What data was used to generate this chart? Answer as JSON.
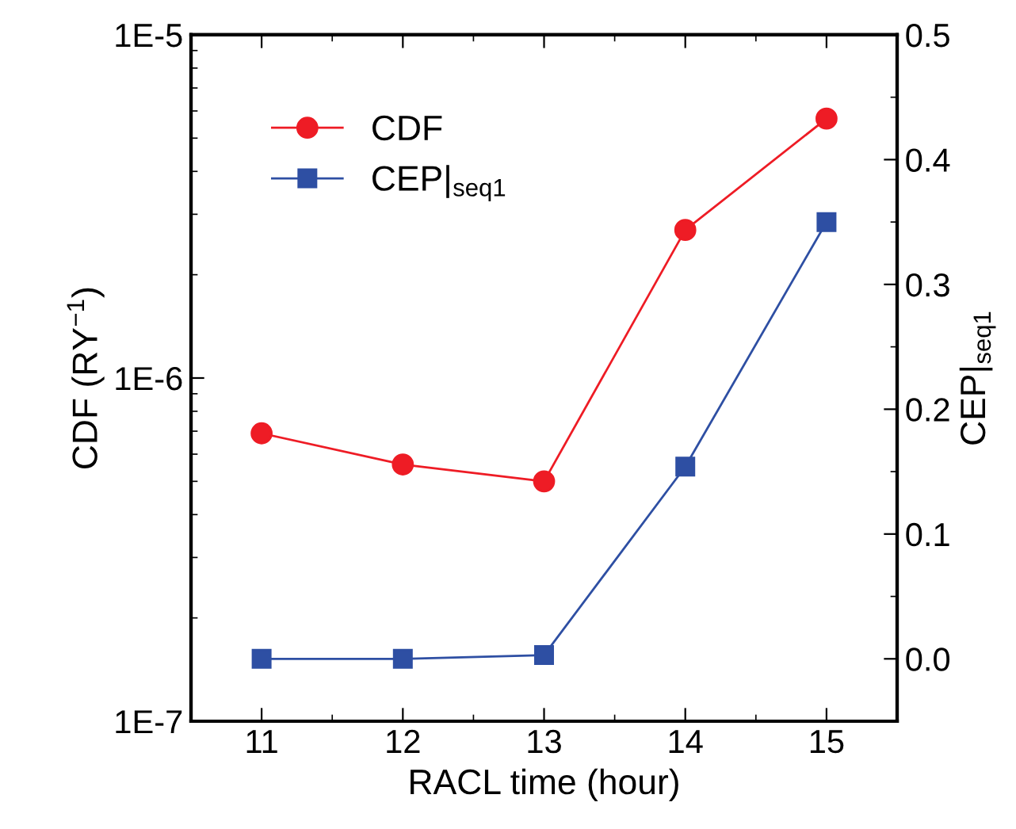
{
  "chart_data": {
    "type": "line",
    "xlabel": "RACL time (hour)",
    "ylabel": "CDF (RY$^{−1}$)",
    "y2label": "CEP|$_{seq1}$",
    "x": [
      11,
      12,
      13,
      14,
      15
    ],
    "series": [
      {
        "name": "CDF",
        "color": "#ee1c25",
        "marker": "circle",
        "values": [
          6.9e-07,
          5.6e-07,
          5e-07,
          2.7e-06,
          5.7e-06
        ]
      },
      {
        "name": "CEP|$_{seq1}$",
        "color": "#2e4fa3",
        "marker": "square",
        "axis": "y2",
        "values": [
          0.0,
          0.0,
          0.003,
          0.154,
          0.35
        ]
      }
    ],
    "xlim": [
      10.5,
      15.5
    ],
    "xticks": [
      11,
      12,
      13,
      14,
      15
    ],
    "ylim": [
      1e-07,
      1e-05
    ],
    "yticks": [
      {
        "value": 1e-07,
        "label": "1E-7"
      },
      {
        "value": 1e-06,
        "label": "1E-6"
      },
      {
        "value": 1e-05,
        "label": "1E-5"
      }
    ],
    "y2lim": [
      -0.05,
      0.5
    ],
    "y2ticks": [
      {
        "value": 0.0,
        "label": "0.0"
      },
      {
        "value": 0.1,
        "label": "0.1"
      },
      {
        "value": 0.2,
        "label": "0.2"
      },
      {
        "value": 0.3,
        "label": "0.3"
      },
      {
        "value": 0.4,
        "label": "0.4"
      },
      {
        "value": 0.5,
        "label": "0.5"
      }
    ],
    "log": "y",
    "grid": false,
    "legend": "top left",
    "line_style": "solid"
  }
}
